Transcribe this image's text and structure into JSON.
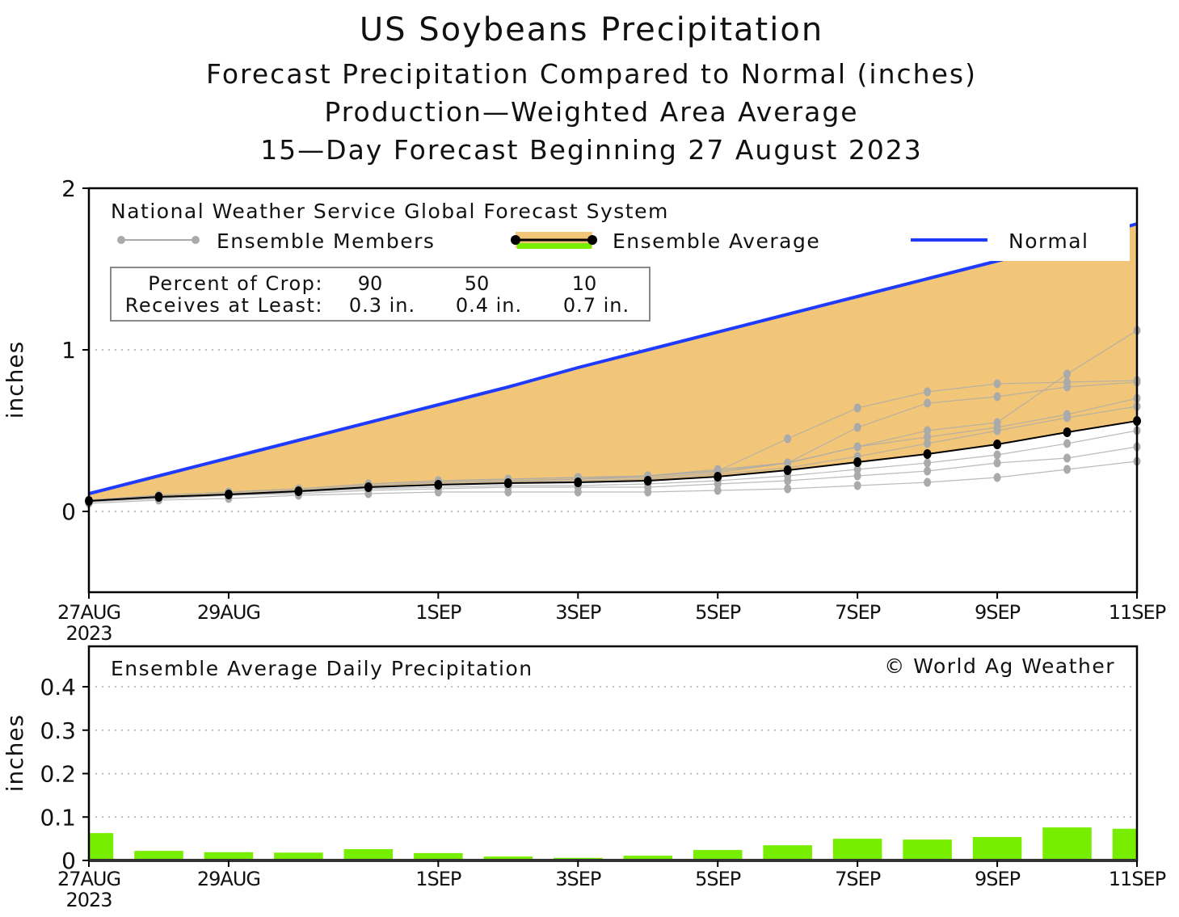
{
  "title": "US  Soybeans  Precipitation",
  "subtitles": [
    "Forecast  Precipitation  Compared  to  Normal  (inches)",
    "Production—Weighted  Area  Average",
    "15—Day  Forecast  Beginning  27  August  2023"
  ],
  "colors": {
    "normal": "#1f3bff",
    "fill": "#f2c679",
    "average": "#000000",
    "members": "#aaaaaa",
    "bars": "#77ee00"
  },
  "chart_data": [
    {
      "type": "line",
      "ylabel": "inches",
      "ylim": [
        -0.5,
        2
      ],
      "yticks": [
        "0",
        "1",
        "2"
      ],
      "ytick_values": [
        0,
        1,
        2
      ],
      "x": [
        "27AUG",
        "28AUG",
        "29AUG",
        "30AUG",
        "31AUG",
        "1SEP",
        "2SEP",
        "3SEP",
        "4SEP",
        "5SEP",
        "6SEP",
        "7SEP",
        "8SEP",
        "9SEP",
        "10SEP",
        "11SEP"
      ],
      "xticks": [
        {
          "day": 0,
          "label": "27AUG",
          "sub": "2023"
        },
        {
          "day": 2,
          "label": "29AUG"
        },
        {
          "day": 5,
          "label": "1SEP"
        },
        {
          "day": 7,
          "label": "3SEP"
        },
        {
          "day": 9,
          "label": "5SEP"
        },
        {
          "day": 11,
          "label": "7SEP"
        },
        {
          "day": 13,
          "label": "9SEP"
        },
        {
          "day": 15,
          "label": "11SEP"
        }
      ],
      "grid": "dotted horizontal",
      "legend": {
        "header": "National  Weather  Service  Global  Forecast  System",
        "members_label": "Ensemble  Members",
        "average_label": "Ensemble  Average",
        "normal_label": "Normal"
      },
      "crop_table": {
        "row1_label": "Percent  of  Crop:",
        "row2_label": "Receives  at  Least:",
        "percents": [
          "90",
          "50",
          "10"
        ],
        "amounts": [
          "0.3  in.",
          "0.4  in.",
          "0.7  in."
        ]
      },
      "series": [
        {
          "name": "Normal",
          "values": [
            0.11,
            0.22,
            0.33,
            0.44,
            0.55,
            0.66,
            0.77,
            0.89,
            1.0,
            1.11,
            1.22,
            1.33,
            1.44,
            1.55,
            1.66,
            1.78
          ]
        },
        {
          "name": "Ensemble  Average",
          "values": [
            0.065,
            0.09,
            0.105,
            0.125,
            0.15,
            0.165,
            0.175,
            0.18,
            0.19,
            0.215,
            0.255,
            0.305,
            0.355,
            0.415,
            0.49,
            0.56
          ]
        }
      ],
      "members": [
        [
          0.07,
          0.1,
          0.12,
          0.14,
          0.17,
          0.19,
          0.2,
          0.21,
          0.22,
          0.25,
          0.45,
          0.64,
          0.74,
          0.79,
          0.8,
          0.81
        ],
        [
          0.07,
          0.1,
          0.12,
          0.14,
          0.17,
          0.19,
          0.2,
          0.21,
          0.22,
          0.26,
          0.3,
          0.52,
          0.67,
          0.71,
          0.77,
          0.8
        ],
        [
          0.06,
          0.09,
          0.11,
          0.13,
          0.16,
          0.18,
          0.19,
          0.2,
          0.22,
          0.25,
          0.3,
          0.4,
          0.5,
          0.55,
          0.85,
          1.12
        ],
        [
          0.05,
          0.07,
          0.08,
          0.1,
          0.11,
          0.12,
          0.12,
          0.12,
          0.12,
          0.13,
          0.14,
          0.16,
          0.18,
          0.21,
          0.26,
          0.31
        ],
        [
          0.06,
          0.08,
          0.1,
          0.12,
          0.14,
          0.15,
          0.16,
          0.16,
          0.17,
          0.19,
          0.22,
          0.26,
          0.3,
          0.35,
          0.42,
          0.5
        ],
        [
          0.06,
          0.09,
          0.11,
          0.13,
          0.16,
          0.18,
          0.19,
          0.2,
          0.21,
          0.24,
          0.3,
          0.4,
          0.46,
          0.52,
          0.6,
          0.7
        ],
        [
          0.06,
          0.08,
          0.1,
          0.11,
          0.13,
          0.14,
          0.15,
          0.15,
          0.15,
          0.17,
          0.19,
          0.22,
          0.25,
          0.3,
          0.33,
          0.4
        ],
        [
          0.06,
          0.09,
          0.1,
          0.12,
          0.15,
          0.17,
          0.18,
          0.19,
          0.2,
          0.23,
          0.27,
          0.34,
          0.42,
          0.5,
          0.58,
          0.65
        ]
      ]
    },
    {
      "type": "bar",
      "title": "Ensemble  Average  Daily  Precipitation",
      "credit": "© World  Ag  Weather",
      "ylabel": "inches",
      "ylim": [
        0,
        0.4
      ],
      "yticks": [
        "0",
        "0.1",
        "0.2",
        "0.3",
        "0.4"
      ],
      "ytick_values": [
        0,
        0.1,
        0.2,
        0.3,
        0.4
      ],
      "grid": "dotted horizontal",
      "values": [
        0.063,
        0.022,
        0.019,
        0.018,
        0.026,
        0.017,
        0.009,
        0.006,
        0.011,
        0.024,
        0.035,
        0.05,
        0.048,
        0.054,
        0.076,
        0.073
      ]
    }
  ]
}
